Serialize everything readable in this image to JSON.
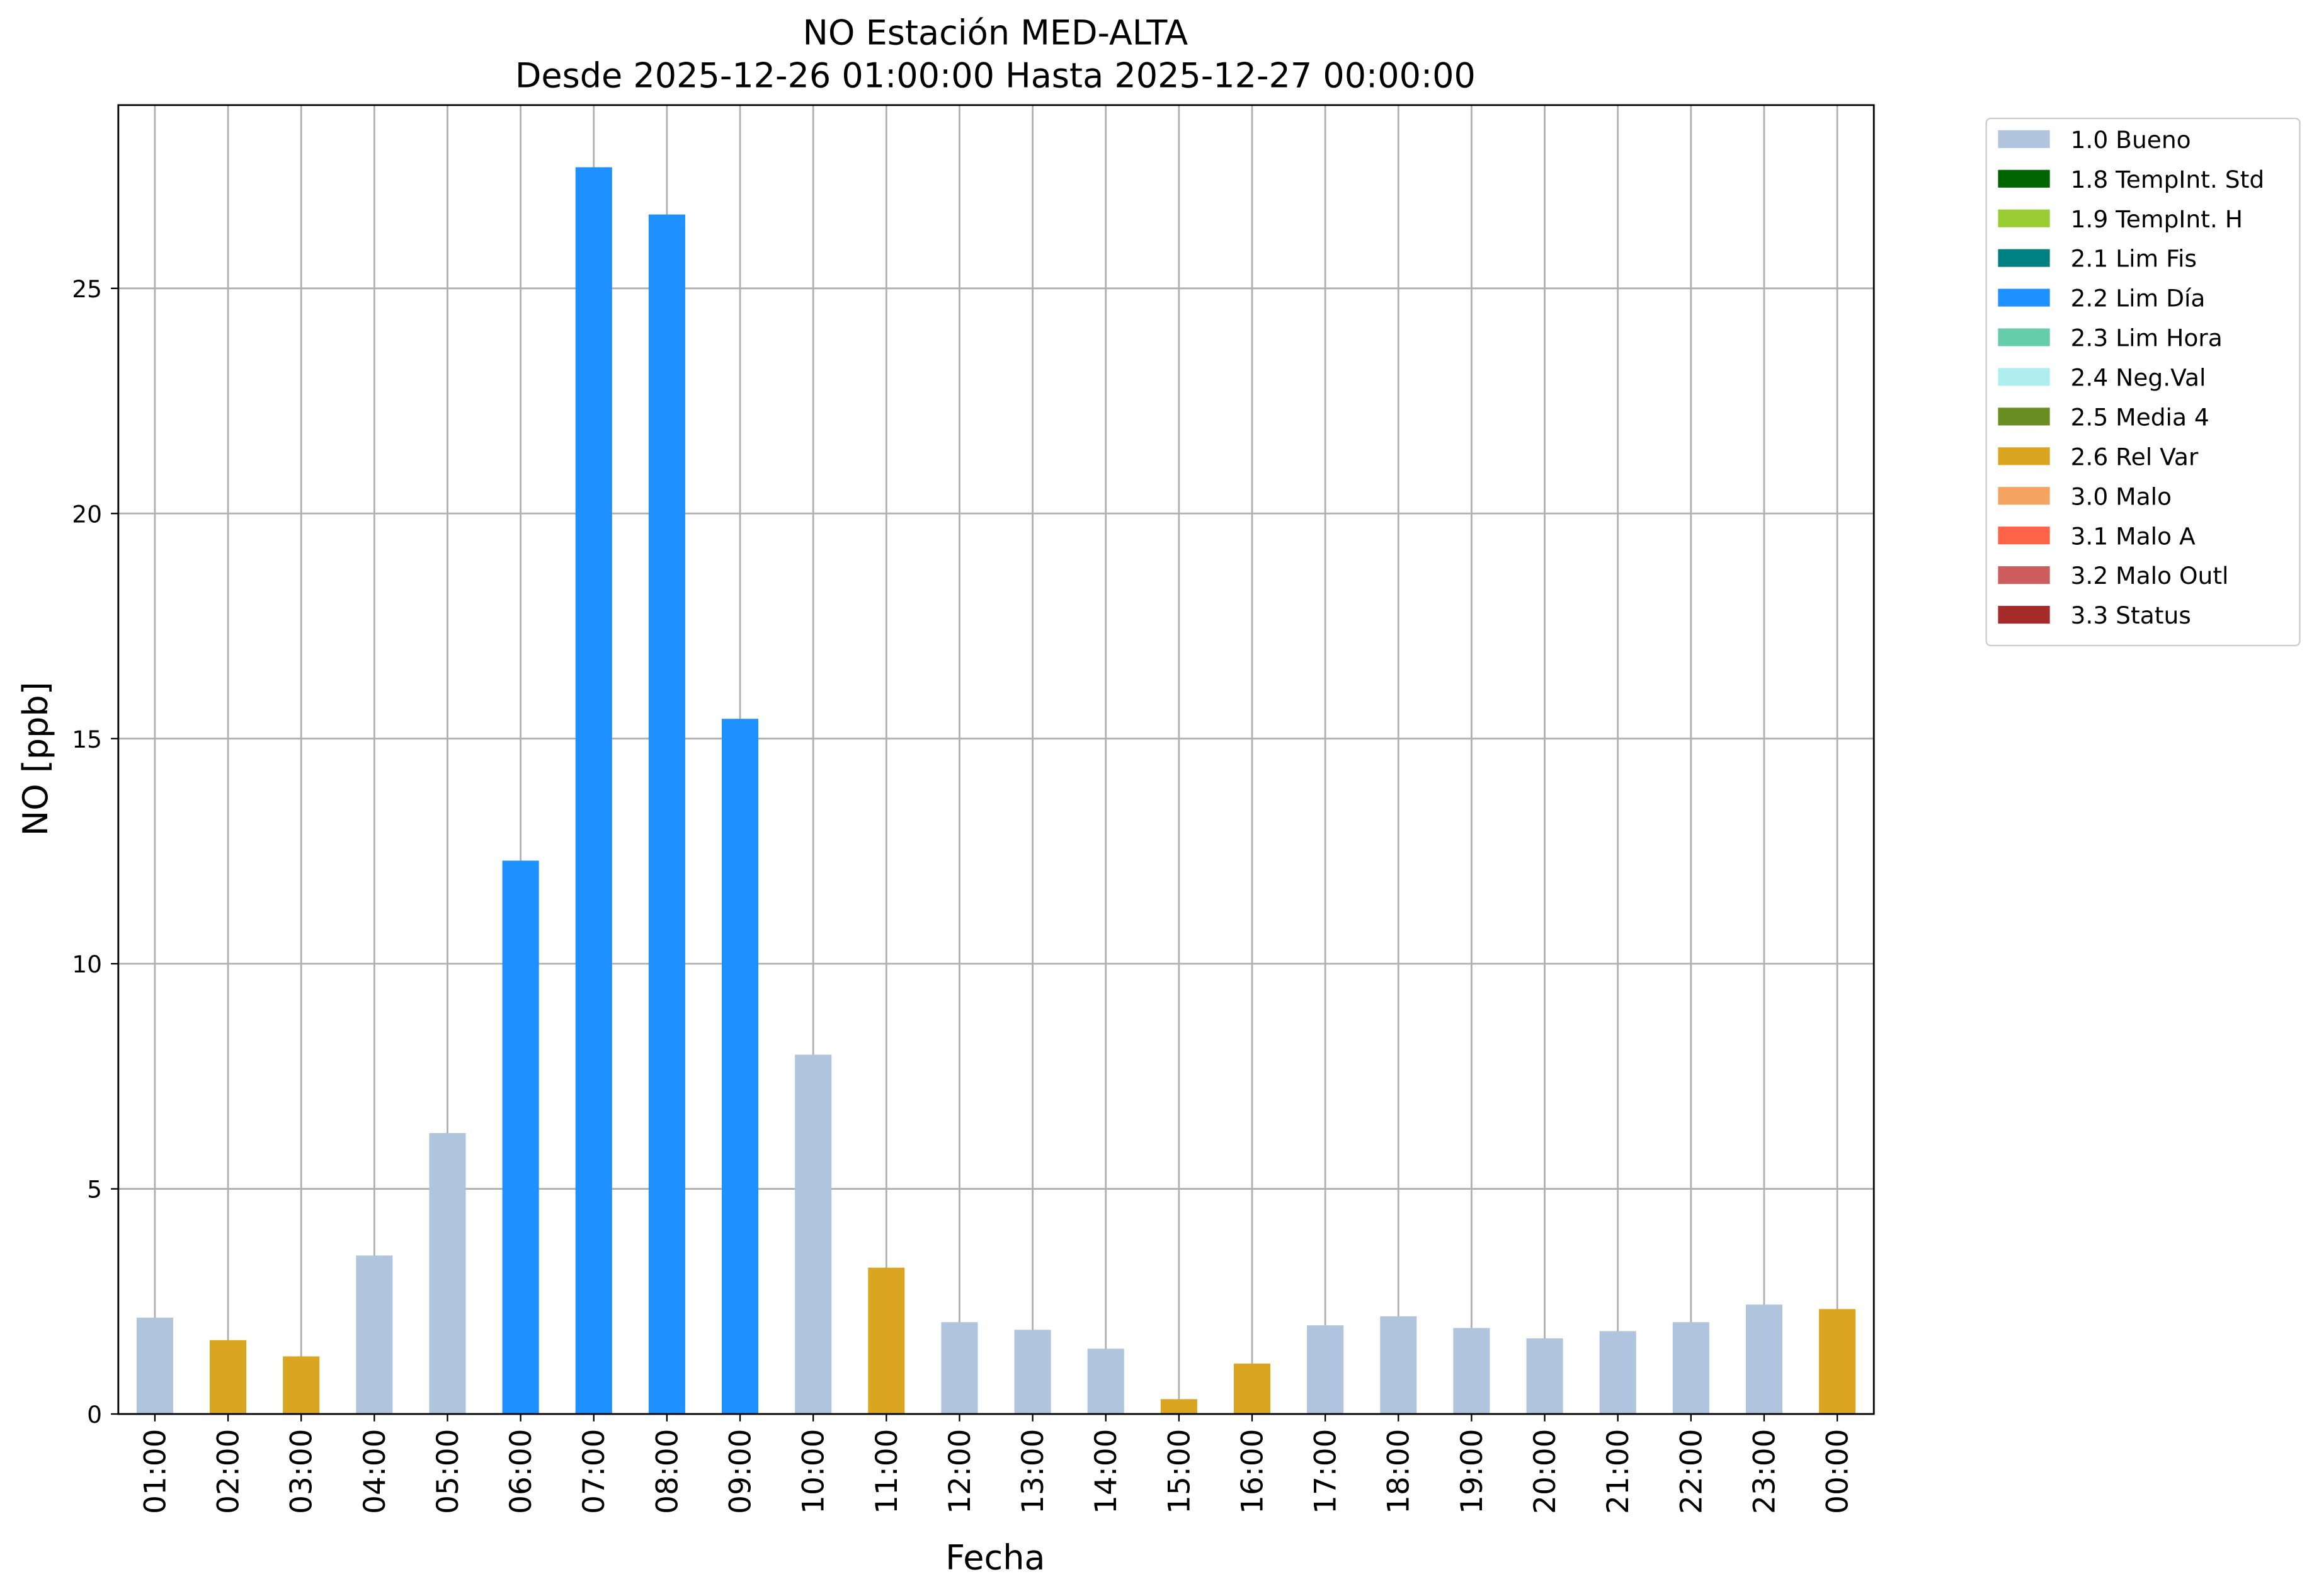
{
  "chart_data": {
    "type": "bar",
    "title": "NO Estación MED-ALTA",
    "subtitle": "Desde 2025-12-26 01:00:00 Hasta 2025-12-27 00:00:00",
    "x_label": "Fecha",
    "y_label": "NO [ppb]",
    "categories": [
      "01:00",
      "02:00",
      "03:00",
      "04:00",
      "05:00",
      "06:00",
      "07:00",
      "08:00",
      "09:00",
      "10:00",
      "11:00",
      "12:00",
      "13:00",
      "14:00",
      "15:00",
      "16:00",
      "17:00",
      "18:00",
      "19:00",
      "20:00",
      "21:00",
      "22:00",
      "23:00",
      "00:00"
    ],
    "series": [
      {
        "name": "1.0 Bueno",
        "color": "#b0c4de",
        "values": [
          2.14,
          null,
          null,
          3.52,
          6.24,
          null,
          null,
          null,
          null,
          7.98,
          null,
          2.04,
          1.87,
          1.45,
          null,
          null,
          1.97,
          2.17,
          1.91,
          1.68,
          1.84,
          2.04,
          2.43,
          null
        ]
      },
      {
        "name": "1.8 TempInt. Std",
        "color": "#006400",
        "values": [
          null,
          null,
          null,
          null,
          null,
          null,
          null,
          null,
          null,
          null,
          null,
          null,
          null,
          null,
          null,
          null,
          null,
          null,
          null,
          null,
          null,
          null,
          null,
          null
        ]
      },
      {
        "name": "1.9 TempInt. H",
        "color": "#9acd32",
        "values": [
          null,
          null,
          null,
          null,
          null,
          null,
          null,
          null,
          null,
          null,
          null,
          null,
          null,
          null,
          null,
          null,
          null,
          null,
          null,
          null,
          null,
          null,
          null,
          null
        ]
      },
      {
        "name": "2.1 Lim Fis",
        "color": "#008080",
        "values": [
          null,
          null,
          null,
          null,
          null,
          null,
          null,
          null,
          null,
          null,
          null,
          null,
          null,
          null,
          null,
          null,
          null,
          null,
          null,
          null,
          null,
          null,
          null,
          null
        ]
      },
      {
        "name": "2.2 Lim Día",
        "color": "#1e90ff",
        "values": [
          null,
          null,
          null,
          null,
          null,
          12.29,
          27.69,
          26.64,
          15.44,
          null,
          null,
          null,
          null,
          null,
          null,
          null,
          null,
          null,
          null,
          null,
          null,
          null,
          null,
          null
        ]
      },
      {
        "name": "2.3 Lim Hora",
        "color": "#66cdaa",
        "values": [
          null,
          null,
          null,
          null,
          null,
          null,
          null,
          null,
          null,
          null,
          null,
          null,
          null,
          null,
          null,
          null,
          null,
          null,
          null,
          null,
          null,
          null,
          null,
          null
        ]
      },
      {
        "name": "2.4 Neg.Val",
        "color": "#afeeee",
        "values": [
          null,
          null,
          null,
          null,
          null,
          null,
          null,
          null,
          null,
          null,
          null,
          null,
          null,
          null,
          null,
          null,
          null,
          null,
          null,
          null,
          null,
          null,
          null,
          null
        ]
      },
      {
        "name": "2.5 Media 4",
        "color": "#6b8e23",
        "values": [
          null,
          null,
          null,
          null,
          null,
          null,
          null,
          null,
          null,
          null,
          null,
          null,
          null,
          null,
          null,
          null,
          null,
          null,
          null,
          null,
          null,
          null,
          null,
          null
        ]
      },
      {
        "name": "2.6 Rel Var",
        "color": "#daa520",
        "values": [
          null,
          1.64,
          1.28,
          null,
          null,
          null,
          null,
          null,
          null,
          null,
          3.25,
          null,
          null,
          null,
          0.33,
          1.12,
          null,
          null,
          null,
          null,
          null,
          null,
          null,
          2.33
        ]
      },
      {
        "name": "3.0 Malo",
        "color": "#f4a460",
        "values": [
          null,
          null,
          null,
          null,
          null,
          null,
          null,
          null,
          null,
          null,
          null,
          null,
          null,
          null,
          null,
          null,
          null,
          null,
          null,
          null,
          null,
          null,
          null,
          null
        ]
      },
      {
        "name": "3.1 Malo A",
        "color": "#ff6347",
        "values": [
          null,
          null,
          null,
          null,
          null,
          null,
          null,
          null,
          null,
          null,
          null,
          null,
          null,
          null,
          null,
          null,
          null,
          null,
          null,
          null,
          null,
          null,
          null,
          null
        ]
      },
      {
        "name": "3.2 Malo Outl",
        "color": "#cd5c5c",
        "values": [
          null,
          null,
          null,
          null,
          null,
          null,
          null,
          null,
          null,
          null,
          null,
          null,
          null,
          null,
          null,
          null,
          null,
          null,
          null,
          null,
          null,
          null,
          null,
          null
        ]
      },
      {
        "name": "3.3 Status",
        "color": "#a52a2a",
        "values": [
          null,
          null,
          null,
          null,
          null,
          null,
          null,
          null,
          null,
          null,
          null,
          null,
          null,
          null,
          null,
          null,
          null,
          null,
          null,
          null,
          null,
          null,
          null,
          null
        ]
      }
    ],
    "ylim": [
      0,
      29.07
    ],
    "yticks": [
      0,
      5,
      10,
      15,
      20,
      25
    ],
    "grid": true,
    "legend": "outside-upper-right"
  }
}
